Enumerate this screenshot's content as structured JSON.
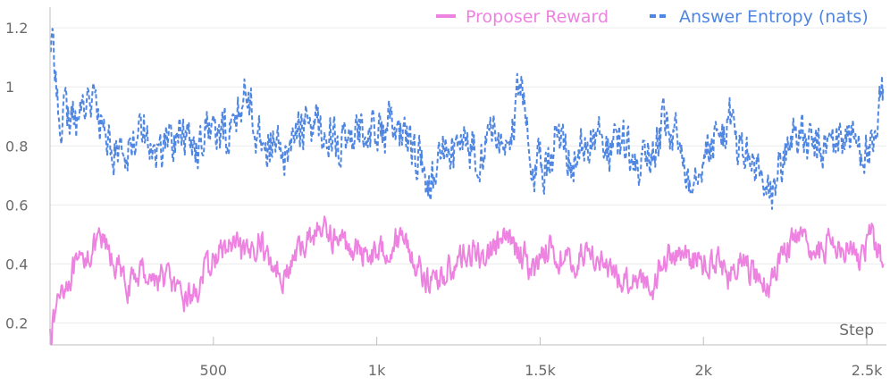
{
  "chart_data": {
    "type": "line",
    "title": "",
    "xlabel": "Step",
    "ylabel": "",
    "xlim": [
      0,
      2560
    ],
    "ylim": [
      0.15,
      1.27
    ],
    "x_ticks": [
      500,
      1000,
      1500,
      2000,
      2500
    ],
    "x_tick_labels": [
      "500",
      "1k",
      "1.5k",
      "2k",
      "2.5k"
    ],
    "y_ticks": [
      0.2,
      0.4,
      0.6,
      0.8,
      1.0,
      1.2
    ],
    "y_tick_labels": [
      "0.2",
      "0.4",
      "0.6",
      "0.8",
      "1",
      "1.2"
    ],
    "grid": true,
    "legend_position": "top-right",
    "series": [
      {
        "name": "Proposer Reward",
        "color": "#ee82e0",
        "dash": "solid",
        "x": [
          0,
          40,
          80,
          120,
          160,
          200,
          240,
          280,
          320,
          360,
          400,
          440,
          480,
          520,
          560,
          600,
          640,
          680,
          720,
          760,
          800,
          840,
          880,
          920,
          960,
          1000,
          1040,
          1080,
          1120,
          1160,
          1200,
          1240,
          1280,
          1320,
          1360,
          1400,
          1440,
          1480,
          1520,
          1560,
          1600,
          1640,
          1680,
          1720,
          1760,
          1800,
          1840,
          1880,
          1920,
          1960,
          2000,
          2040,
          2080,
          2120,
          2160,
          2200,
          2240,
          2280,
          2320,
          2360,
          2400,
          2440,
          2480,
          2520,
          2550
        ],
        "values": [
          0.18,
          0.33,
          0.38,
          0.44,
          0.47,
          0.4,
          0.32,
          0.38,
          0.35,
          0.36,
          0.28,
          0.3,
          0.38,
          0.44,
          0.46,
          0.42,
          0.48,
          0.4,
          0.36,
          0.44,
          0.5,
          0.52,
          0.48,
          0.46,
          0.44,
          0.44,
          0.46,
          0.5,
          0.4,
          0.34,
          0.36,
          0.4,
          0.44,
          0.42,
          0.46,
          0.48,
          0.44,
          0.38,
          0.46,
          0.42,
          0.4,
          0.44,
          0.42,
          0.36,
          0.34,
          0.36,
          0.32,
          0.42,
          0.44,
          0.42,
          0.4,
          0.42,
          0.36,
          0.4,
          0.36,
          0.32,
          0.44,
          0.48,
          0.46,
          0.44,
          0.48,
          0.46,
          0.42,
          0.5,
          0.4
        ]
      },
      {
        "name": "Answer Entropy (nats)",
        "color": "#4f86e1",
        "dash": "dashed",
        "x": [
          0,
          40,
          80,
          120,
          160,
          200,
          240,
          280,
          320,
          360,
          400,
          440,
          480,
          520,
          560,
          600,
          640,
          680,
          720,
          760,
          800,
          840,
          880,
          920,
          960,
          1000,
          1040,
          1080,
          1120,
          1160,
          1200,
          1240,
          1280,
          1320,
          1360,
          1400,
          1440,
          1480,
          1520,
          1560,
          1600,
          1640,
          1680,
          1720,
          1760,
          1800,
          1840,
          1880,
          1920,
          1960,
          2000,
          2040,
          2080,
          2120,
          2160,
          2200,
          2240,
          2280,
          2320,
          2360,
          2400,
          2440,
          2480,
          2520,
          2550
        ],
        "values": [
          1.12,
          0.9,
          0.88,
          0.98,
          0.86,
          0.78,
          0.8,
          0.88,
          0.76,
          0.82,
          0.84,
          0.8,
          0.86,
          0.82,
          0.88,
          0.98,
          0.84,
          0.8,
          0.76,
          0.86,
          0.88,
          0.86,
          0.82,
          0.78,
          0.88,
          0.84,
          0.86,
          0.82,
          0.78,
          0.66,
          0.76,
          0.78,
          0.8,
          0.78,
          0.84,
          0.8,
          0.98,
          0.72,
          0.74,
          0.84,
          0.76,
          0.8,
          0.82,
          0.78,
          0.8,
          0.74,
          0.76,
          0.86,
          0.82,
          0.7,
          0.78,
          0.82,
          0.88,
          0.78,
          0.72,
          0.62,
          0.74,
          0.86,
          0.8,
          0.78,
          0.82,
          0.84,
          0.8,
          0.76,
          1.0
        ]
      }
    ]
  }
}
